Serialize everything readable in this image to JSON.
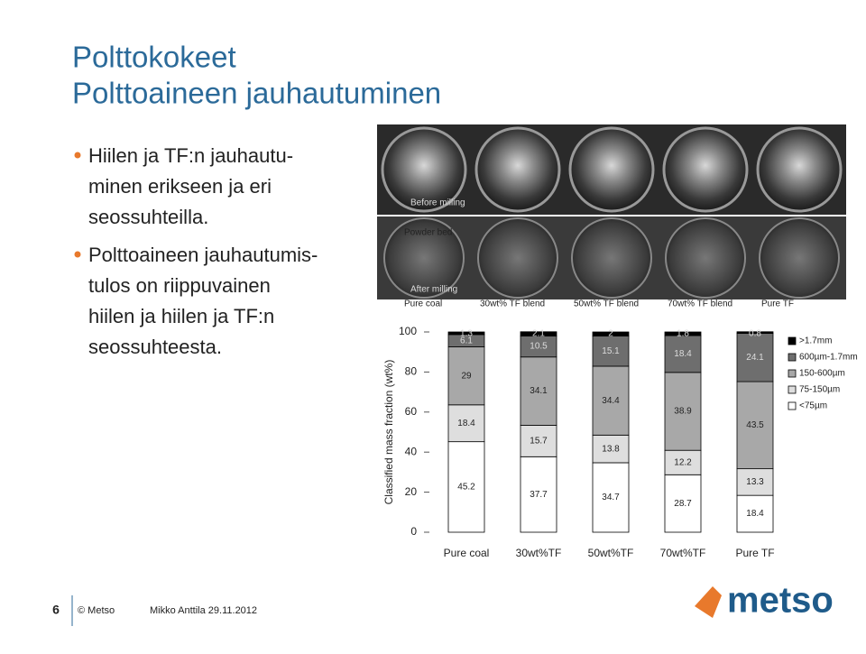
{
  "slide": {
    "title_lines": [
      "Polttokokeet",
      "Polttoaineen jauhautuminen"
    ],
    "bullets": [
      [
        "Hiilen ja TF:n jauhautu-",
        "minen erikseen ja eri",
        "seossuhteilla."
      ],
      [
        "Polttoaineen jauhautumis-",
        "tulos on riippuvainen",
        "hiilen ja hiilen ja TF:n",
        "seossuhteesta."
      ]
    ],
    "footer": {
      "page": "6",
      "copyright": "© Metso",
      "author": "Mikko Anttila 29.11.2012",
      "logo": "metso"
    }
  },
  "photos": {
    "row_labels": [
      "Before milling",
      "Powder bed",
      "After milling"
    ],
    "captions": [
      "Pure coal",
      "30wt% TF blend",
      "50wt% TF blend",
      "70wt% TF blend",
      "Pure TF"
    ]
  },
  "chart_data": {
    "type": "stacked_bar",
    "y_label": "Classified mass fraction (wt%)",
    "categories": [
      "Pure coal",
      "30wt%TF",
      "50wt%TF",
      "70wt%TF",
      "Pure TF"
    ],
    "series": [
      {
        "name": "<75µm",
        "color": "#ffffff",
        "values": [
          45.2,
          37.7,
          34.7,
          28.7,
          18.4
        ]
      },
      {
        "name": "75-150µm",
        "color": "#dedede",
        "values": [
          18.4,
          15.7,
          13.8,
          12.2,
          13.3
        ]
      },
      {
        "name": "150-600µm",
        "color": "#a8a8a8",
        "values": [
          29.0,
          34.1,
          34.4,
          38.9,
          43.5
        ]
      },
      {
        "name": "600µm-1.7mm",
        "color": "#6e6e6e",
        "values": [
          6.1,
          10.5,
          15.1,
          18.4,
          24.1
        ]
      },
      {
        "name": ">1.7mm",
        "color": "#000000",
        "values": [
          1.3,
          2.1,
          2.0,
          1.8,
          0.8
        ]
      }
    ],
    "ylim": [
      0,
      100
    ],
    "yticks": [
      0,
      20,
      40,
      60,
      80,
      100
    ]
  }
}
